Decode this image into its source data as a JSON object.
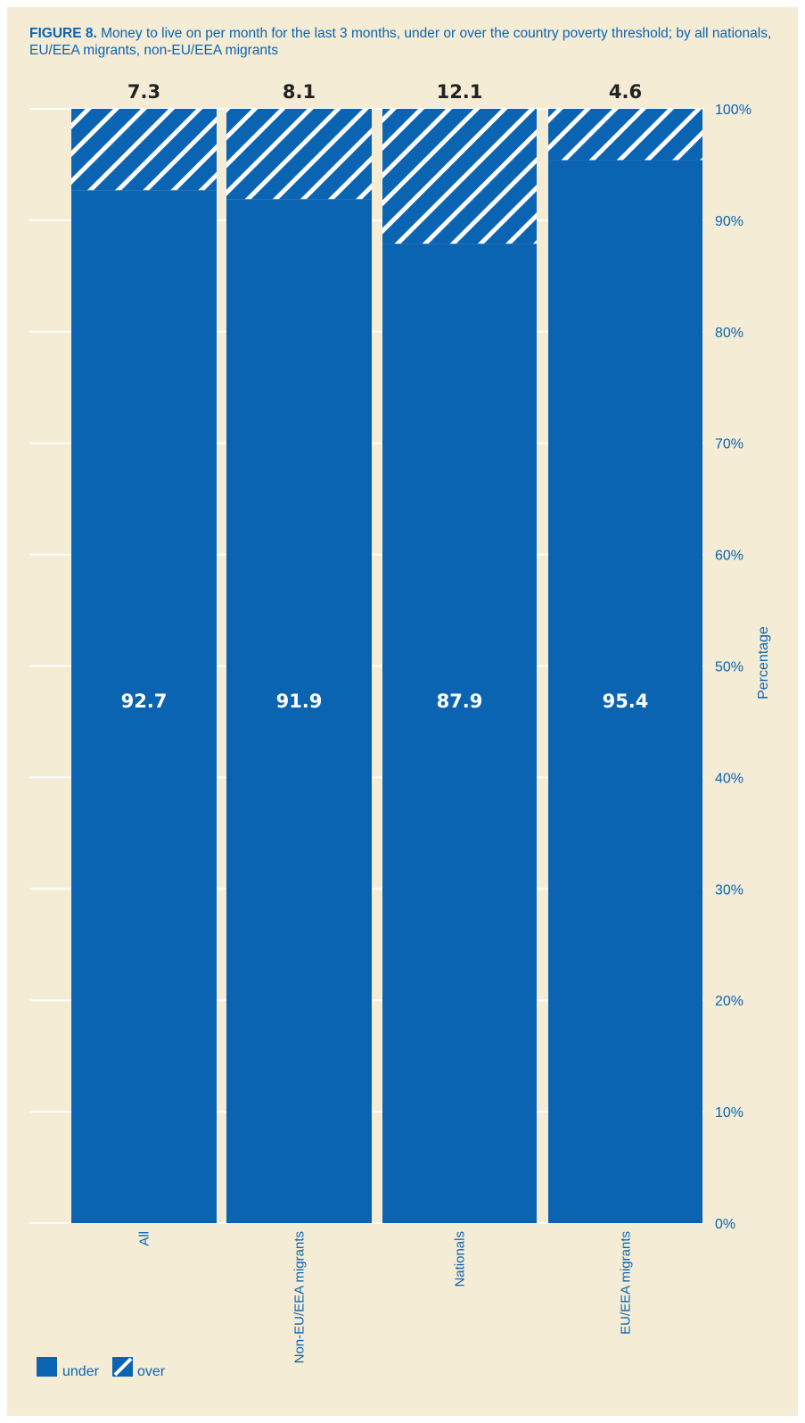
{
  "title": {
    "prefix": "FIGURE 8.",
    "text": "Money to live on per month for the last 3 months, under or over the country poverty threshold; by all nationals, EU/EEA migrants, non-EU/EEA migrants"
  },
  "colors": {
    "under": "#0b64b2",
    "over_stripe": "#ffffff",
    "background": "#f4ecd5",
    "text": "#0b64b2"
  },
  "chart_data": {
    "type": "bar",
    "stacked": true,
    "percent": true,
    "categories": [
      "All",
      "Non-EU/EEA migrants",
      "Nationals",
      "EU/EEA migrants"
    ],
    "series": [
      {
        "name": "under",
        "values": [
          92.7,
          91.9,
          87.9,
          95.4
        ],
        "value_labels": [
          "92.7",
          "91.9",
          "87.9",
          "95.4"
        ],
        "pattern": "solid"
      },
      {
        "name": "over",
        "values": [
          7.3,
          8.1,
          12.1,
          4.6
        ],
        "value_labels": [
          "7.3",
          "8.1",
          "12.1",
          "4.6"
        ],
        "pattern": "hatched"
      }
    ],
    "ylabel": "Percentage",
    "ylim": [
      0,
      100
    ],
    "yticks": [
      0,
      10,
      20,
      30,
      40,
      50,
      60,
      70,
      80,
      90,
      100
    ],
    "ytick_labels": [
      "0%",
      "10%",
      "20%",
      "30%",
      "40%",
      "50%",
      "60%",
      "70%",
      "80%",
      "90%",
      "100%"
    ],
    "y_axis_side": "right",
    "grid": true,
    "legend": {
      "position": "bottom-left",
      "items": [
        "under",
        "over"
      ]
    }
  }
}
